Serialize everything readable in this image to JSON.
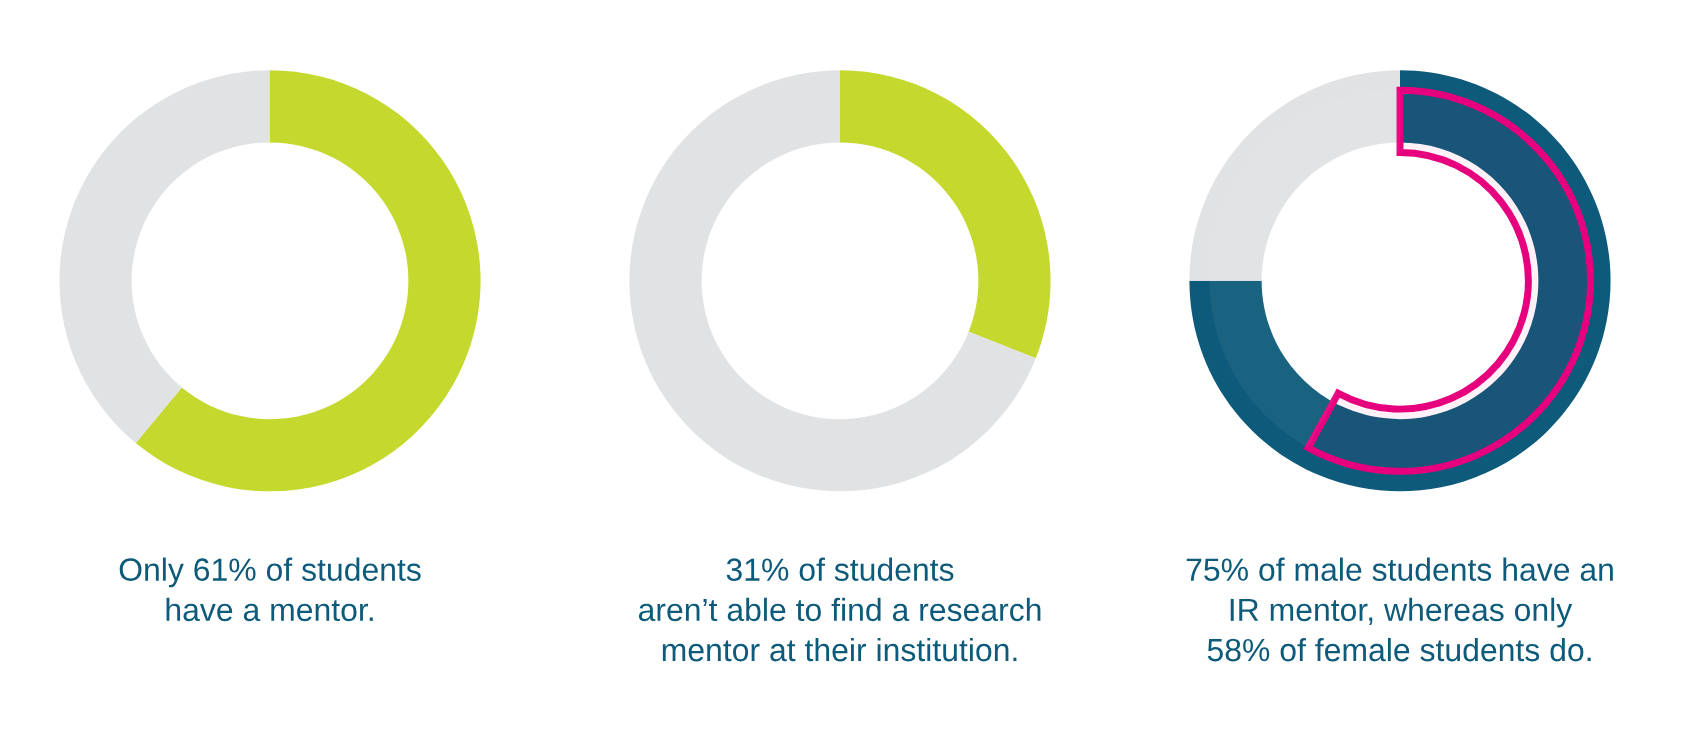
{
  "chart_data": [
    {
      "type": "donut",
      "categories": [
        null,
        null
      ],
      "values": [
        61,
        39
      ],
      "colors": [
        "#c5d82e",
        "#e1e2e3"
      ],
      "annotations": [
        "Only 61% of students\nhave a mentor."
      ]
    },
    {
      "type": "donut",
      "categories": [
        null,
        null
      ],
      "values": [
        31,
        69
      ],
      "colors": [
        "#c5d82e",
        "#e1e2e3"
      ],
      "annotations": [
        "31% of students\naren’t able to find a research\nmentor at their institution."
      ]
    },
    {
      "type": "donut",
      "categories": [
        null,
        null
      ],
      "series": [
        {
          "values": [
            75,
            25
          ],
          "colors": [
            "#0d5a7a",
            "#e1e2e3"
          ]
        },
        {
          "values": [
            58,
            42
          ],
          "colors": [
            "#e6007e",
            null
          ]
        }
      ],
      "annotations": [
        "75% of male students have an\nIR mentor, whereas only\n58% of female students do."
      ]
    }
  ]
}
